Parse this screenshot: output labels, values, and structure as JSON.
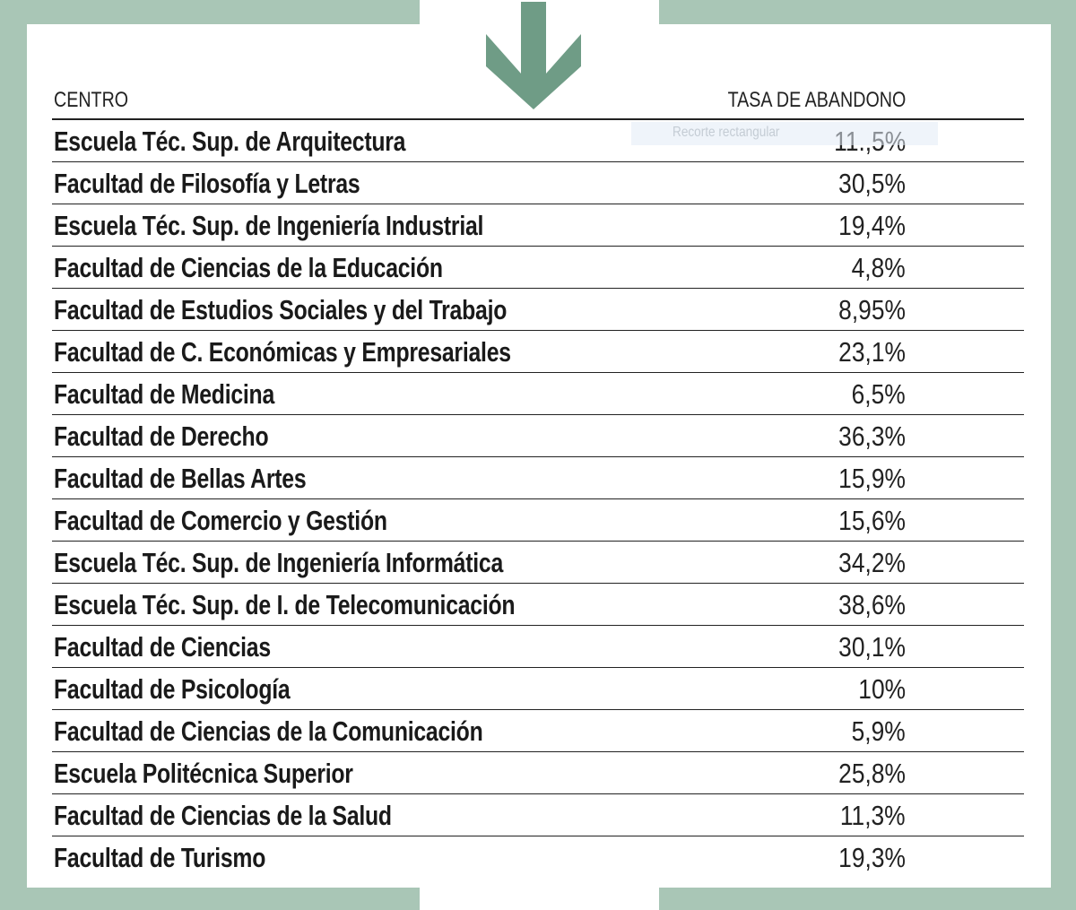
{
  "colors": {
    "frame": "#a9c6b6",
    "arrow": "#6f9c86"
  },
  "icons": {
    "arrow": "arrow-down-icon"
  },
  "table": {
    "headers": {
      "center": "CENTRO",
      "rate": "TASA DE ABANDONO"
    },
    "rows": [
      {
        "name": "Escuela Téc. Sup. de Arquitectura",
        "rate": "11.,5%"
      },
      {
        "name": "Facultad de Filosofía y Letras",
        "rate": "30,5%"
      },
      {
        "name": "Escuela Téc. Sup. de Ingeniería Industrial",
        "rate": "19,4%"
      },
      {
        "name": "Facultad de Ciencias de la Educación",
        "rate": "4,8%"
      },
      {
        "name": "Facultad de Estudios Sociales y del Trabajo",
        "rate": "8,95%"
      },
      {
        "name": "Facultad de C. Económicas y Empresariales",
        "rate": "23,1%"
      },
      {
        "name": "Facultad de Medicina",
        "rate": "6,5%"
      },
      {
        "name": "Facultad de Derecho",
        "rate": "36,3%"
      },
      {
        "name": "Facultad de Bellas Artes",
        "rate": "15,9%"
      },
      {
        "name": "Facultad de Comercio y Gestión",
        "rate": "15,6%"
      },
      {
        "name": "Escuela Téc. Sup. de Ingeniería Informática",
        "rate": "34,2%"
      },
      {
        "name": "Escuela Téc. Sup. de I. de Telecomunicación",
        "rate": "38,6%"
      },
      {
        "name": "Facultad de Ciencias",
        "rate": "30,1%"
      },
      {
        "name": "Facultad de Psicología",
        "rate": "10%"
      },
      {
        "name": "Facultad de Ciencias de la Comunicación",
        "rate": "5,9%"
      },
      {
        "name": "Escuela Politécnica Superior",
        "rate": "25,8%"
      },
      {
        "name": "Facultad de Ciencias de la Salud",
        "rate": "11,3%"
      },
      {
        "name": "Facultad de Turismo",
        "rate": "19,3%"
      }
    ]
  },
  "overlay": {
    "label": "Recorte rectangular"
  }
}
